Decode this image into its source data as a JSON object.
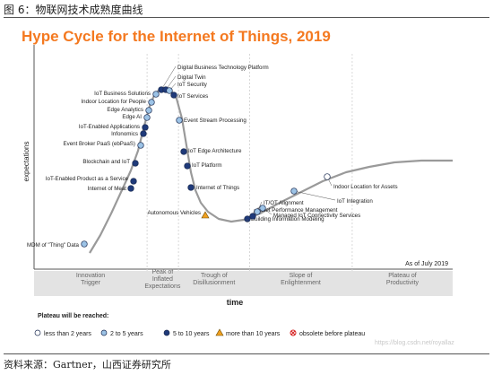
{
  "caption": "图 6：物联网技术成熟度曲线",
  "source": "资料来源：Gartner，山西证券研究所",
  "watermark": "https://blog.csdn.net/royallaz",
  "colors": {
    "title": "#f47920",
    "curve": "#9a9a9a",
    "dark": "#1f3a7a",
    "light": "#9cc3e6",
    "white": "#ffffff",
    "orange": "#f0a020",
    "phase_band": "#e3e3e3"
  },
  "chart_data": {
    "type": "scatter",
    "title": "Hype Cycle for the Internet of Things, 2019",
    "xlabel": "time",
    "ylabel": "expectations",
    "asof": "As of July 2019",
    "phases": [
      "Innovation\nTrigger",
      "Peak of\nInflated\nExpectations",
      "Trough of\nDisillusionment",
      "Slope of\nEnlightenment",
      "Plateau of\nProductivity"
    ],
    "legend_title": "Plateau will be reached:",
    "legend": [
      {
        "label": "less than 2 years",
        "marker": "white"
      },
      {
        "label": "2 to 5 years",
        "marker": "light"
      },
      {
        "label": "5 to 10 years",
        "marker": "dark"
      },
      {
        "label": "more than 10 years",
        "marker": "orange"
      },
      {
        "label": "obsolete before plateau",
        "marker": "obsolete"
      }
    ],
    "technologies": [
      {
        "name": "MDM of \"Thing\" Data",
        "x": 0.18,
        "y": 0.05,
        "marker": "light"
      },
      {
        "name": "Internet of Meat",
        "x": 0.29,
        "y": 0.37,
        "marker": "dark"
      },
      {
        "name": "IoT-Enabled Product as a Service",
        "x": 0.3,
        "y": 0.41,
        "marker": "dark"
      },
      {
        "name": "Blockchain and IoT",
        "x": 0.32,
        "y": 0.5,
        "marker": "dark"
      },
      {
        "name": "Event Broker PaaS (ebPaaS)",
        "x": 0.34,
        "y": 0.59,
        "marker": "light"
      },
      {
        "name": "Infonomics",
        "x": 0.35,
        "y": 0.66,
        "marker": "dark"
      },
      {
        "name": "IoT-Enabled Applications",
        "x": 0.352,
        "y": 0.7,
        "marker": "dark"
      },
      {
        "name": "Edge AI",
        "x": 0.362,
        "y": 0.75,
        "marker": "light"
      },
      {
        "name": "Edge Analytics",
        "x": 0.37,
        "y": 0.8,
        "marker": "light"
      },
      {
        "name": "Indoor Location for People",
        "x": 0.375,
        "y": 0.84,
        "marker": "light"
      },
      {
        "name": "IoT Business Solutions",
        "x": 0.385,
        "y": 0.88,
        "marker": "light"
      },
      {
        "name": "Digital Business Technology Platform",
        "x": 0.39,
        "y": 0.9,
        "marker": "dark"
      },
      {
        "name": "Digital Twin",
        "x": 0.4,
        "y": 0.9,
        "marker": "dark"
      },
      {
        "name": "IoT Security",
        "x": 0.41,
        "y": 0.88,
        "marker": "light"
      },
      {
        "name": "IoT Services",
        "x": 0.42,
        "y": 0.85,
        "marker": "dark"
      },
      {
        "name": "Event Stream Processing",
        "x": 0.43,
        "y": 0.74,
        "marker": "light"
      },
      {
        "name": "IoT Edge Architecture",
        "x": 0.445,
        "y": 0.55,
        "marker": "dark"
      },
      {
        "name": "IoT Platform",
        "x": 0.455,
        "y": 0.49,
        "marker": "dark"
      },
      {
        "name": "Internet of Things",
        "x": 0.47,
        "y": 0.37,
        "marker": "dark"
      },
      {
        "name": "Autonomous Vehicles",
        "x": 0.5,
        "y": 0.22,
        "marker": "orange"
      },
      {
        "name": "Building Information Modeling",
        "x": 0.59,
        "y": 0.2,
        "marker": "dark"
      },
      {
        "name": "Asset Performance Management",
        "x": 0.605,
        "y": 0.21,
        "marker": "dark"
      },
      {
        "name": "IT/OT Alignment",
        "x": 0.615,
        "y": 0.23,
        "marker": "light"
      },
      {
        "name": "Managed IoT Connectivity Services",
        "x": 0.63,
        "y": 0.25,
        "marker": "light"
      },
      {
        "name": "IoT Integration",
        "x": 0.72,
        "y": 0.35,
        "marker": "light"
      },
      {
        "name": "Indoor Location for Assets",
        "x": 0.8,
        "y": 0.42,
        "marker": "white"
      }
    ]
  }
}
